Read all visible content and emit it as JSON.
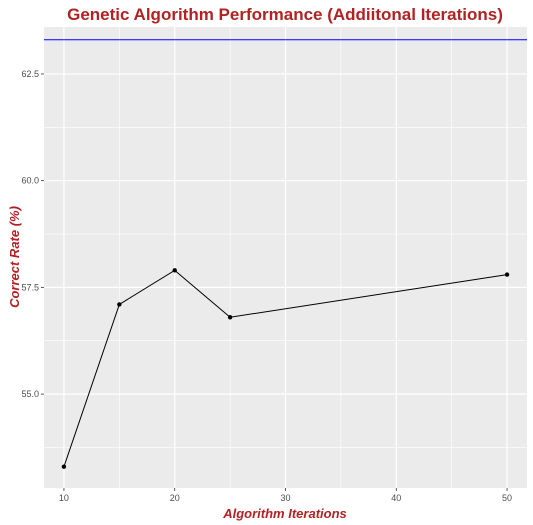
{
  "chart_data": {
    "type": "line",
    "title": "Genetic Algorithm Performance (Addiitonal Iterations)",
    "xlabel": "Algorithm Iterations",
    "ylabel": "Correct Rate (%)",
    "x": [
      10,
      15,
      20,
      25,
      50
    ],
    "series": [
      {
        "values": [
          53.3,
          57.1,
          57.9,
          56.8,
          57.8
        ]
      }
    ],
    "reference_line": {
      "y": 63.3,
      "color": "#0000ff"
    },
    "xlim": [
      8.2,
      51.8
    ],
    "ylim": [
      52.8,
      63.6
    ],
    "xticks": [
      10,
      20,
      30,
      40,
      50
    ],
    "yticks": [
      55.0,
      57.5,
      60.0,
      62.5
    ],
    "ytick_labels": [
      "55.0",
      "57.5",
      "60.0",
      "62.5"
    ],
    "grid": true,
    "colors": {
      "title": "#b22222",
      "axis_title": "#b22222",
      "panel_background": "#ebebeb",
      "grid": "#ffffff",
      "line": "#000000",
      "points": "#000000"
    }
  }
}
